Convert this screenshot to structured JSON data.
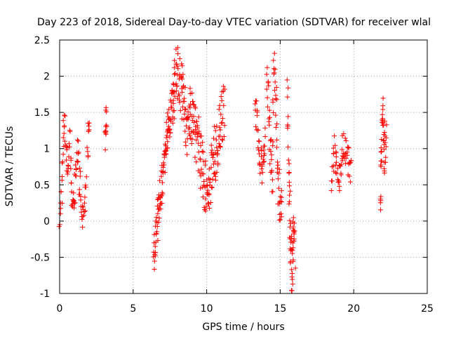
{
  "chart_data": {
    "type": "scatter",
    "title": "Day 223 of 2018, Sidereal Day-to-day VTEC variation (SDTVAR) for receiver wlal",
    "xlabel": "GPS time / hours",
    "ylabel": "SDTVAR / TECUs",
    "xlim": [
      0,
      25
    ],
    "ylim": [
      -1,
      2.5
    ],
    "xticks": [
      "0",
      "5",
      "10",
      "15",
      "20",
      "25"
    ],
    "yticks": [
      "-1",
      "-0.5",
      "0",
      "0.5",
      "1",
      "1.5",
      "2",
      "2.5"
    ],
    "grid": true,
    "marker": "+",
    "color": "#ff0000",
    "segments": [
      {
        "x0": 0.0,
        "x1": 1.8,
        "y": [
          0.0,
          0.3,
          0.9,
          1.4,
          1.1,
          0.7,
          1.2,
          0.5,
          0.2,
          0.3,
          0.8,
          1.0,
          0.6,
          0.3,
          0.1,
          0.3,
          0.4
        ],
        "spread": 0.45,
        "n": 95
      },
      {
        "x0": 1.9,
        "x1": 2.0,
        "y": [
          0.9,
          1.2,
          1.3
        ],
        "spread": 0.35,
        "n": 10
      },
      {
        "x0": 3.1,
        "x1": 3.2,
        "y": [
          1.0,
          1.5,
          1.6
        ],
        "spread": 0.6,
        "n": 12
      },
      {
        "x0": 6.4,
        "x1": 7.8,
        "y": [
          -0.5,
          -0.1,
          0.3,
          0.6,
          1.0,
          1.3,
          1.55,
          1.65
        ],
        "spread": 0.55,
        "n": 110
      },
      {
        "x0": 7.8,
        "x1": 11.2,
        "y": [
          1.9,
          2.1,
          1.7,
          1.3,
          1.5,
          1.2,
          1.0,
          0.6,
          0.4,
          0.7,
          1.0,
          1.3,
          1.6
        ],
        "spread": 0.8,
        "n": 210
      },
      {
        "x0": 13.3,
        "x1": 14.0,
        "y": [
          1.6,
          1.3,
          1.0,
          0.7,
          0.9,
          1.2
        ],
        "spread": 0.55,
        "n": 38
      },
      {
        "x0": 14.1,
        "x1": 15.1,
        "y": [
          2.0,
          1.5,
          1.0,
          0.7,
          2.3,
          1.6,
          0.6,
          0.2,
          0.4
        ],
        "spread": 0.75,
        "n": 70
      },
      {
        "x0": 15.5,
        "x1": 16.0,
        "y": [
          1.8,
          0.5,
          -0.3,
          -0.9,
          0.0,
          -0.4
        ],
        "spread": 0.7,
        "n": 60
      },
      {
        "x0": 18.5,
        "x1": 19.8,
        "y": [
          0.6,
          1.0,
          0.4,
          0.8,
          1.1,
          0.9,
          0.7
        ],
        "spread": 0.45,
        "n": 60
      },
      {
        "x0": 21.8,
        "x1": 22.2,
        "y": [
          0.3,
          0.7,
          1.6,
          1.2,
          0.9,
          1.4
        ],
        "spread": 0.65,
        "n": 42
      }
    ]
  }
}
